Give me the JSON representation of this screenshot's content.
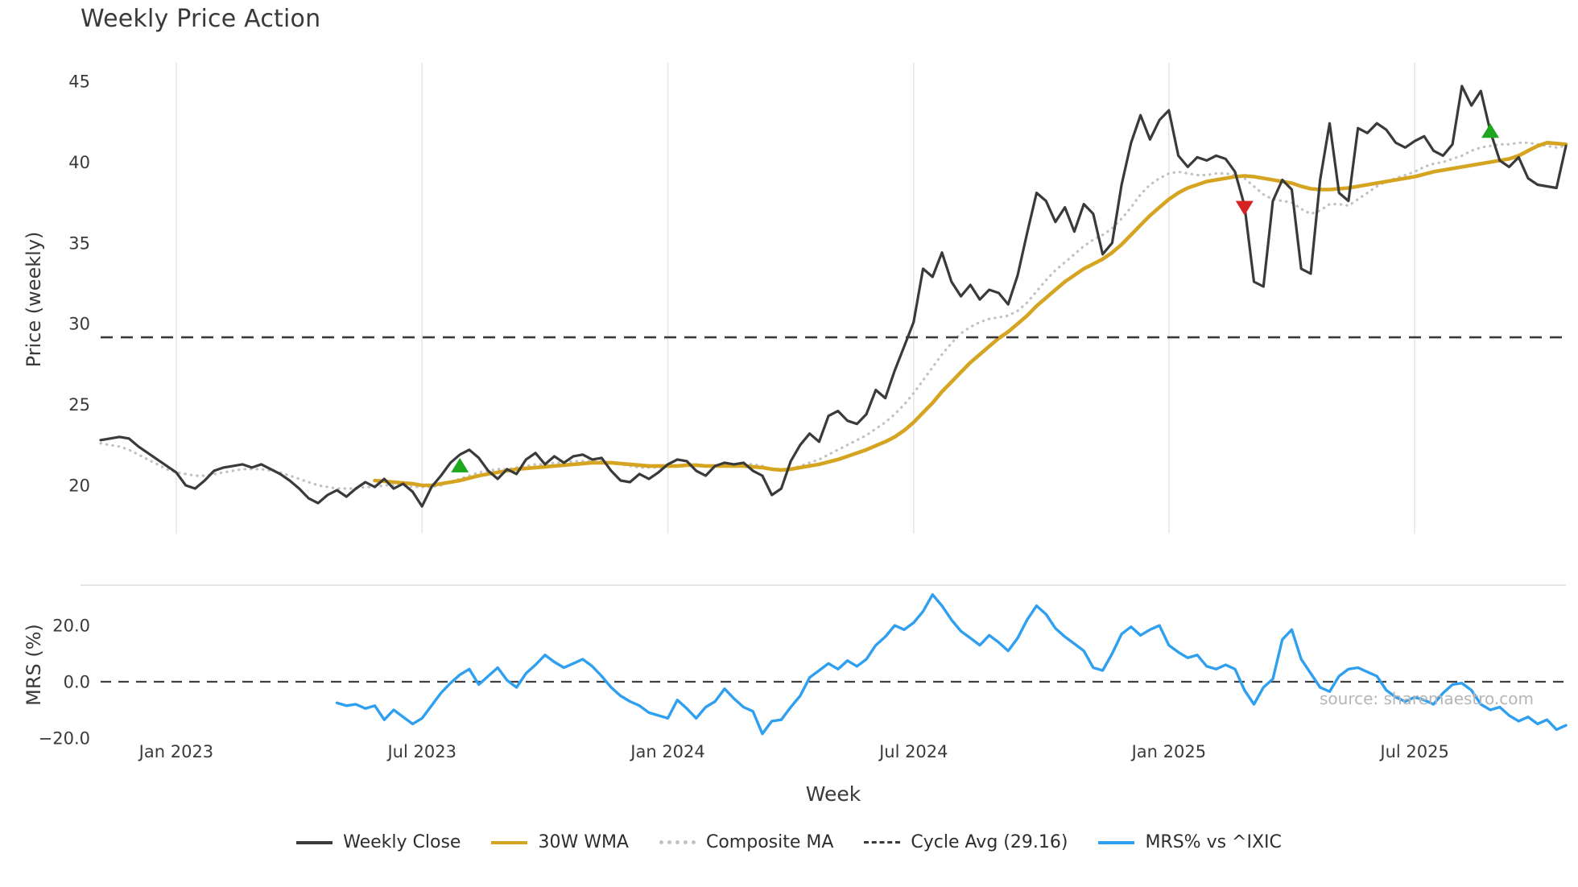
{
  "title": "Weekly Price Action",
  "source_note": "source: sharemaestro.com",
  "colors": {
    "weekly_close": "#3a3a3a",
    "wma": "#d5a521",
    "composite": "#c2c2c2",
    "cycle_avg": "#3a3a3a",
    "mrs": "#2f9ff0",
    "buy_marker": "#1fa81f",
    "sell_marker": "#d62222",
    "grid": "#e7e7e7",
    "panel_border": "#d8d8d8",
    "tick_text": "#3a3a3a"
  },
  "legend": [
    {
      "label": "Weekly Close",
      "swatch": "solid",
      "color": "#3a3a3a"
    },
    {
      "label": "30W WMA",
      "swatch": "solid",
      "color": "#d5a521"
    },
    {
      "label": "Composite MA",
      "swatch": "dotted",
      "color": "#c2c2c2"
    },
    {
      "label": "Cycle Avg (29.16)",
      "swatch": "dashed",
      "color": "#3a3a3a"
    },
    {
      "label": "MRS% vs ^IXIC",
      "swatch": "solid",
      "color": "#2f9ff0"
    }
  ],
  "chart_data": {
    "type": "line",
    "title": "Weekly Price Action",
    "xlabel": "Week",
    "weeks_total": 156,
    "xticks": {
      "weeks": [
        8,
        34,
        60,
        86,
        113,
        139
      ],
      "labels": [
        "Jan 2023",
        "Jul 2023",
        "Jan 2024",
        "Jul 2024",
        "Jan 2025",
        "Jul 2025"
      ]
    },
    "panels": [
      {
        "name": "price",
        "ylabel": "Price (weekly)",
        "ylim": [
          17.5,
          46.2
        ],
        "yticks": [
          45,
          40,
          35,
          30,
          25,
          20
        ],
        "yticklabels": [
          "45",
          "40",
          "35",
          "30",
          "25",
          "20"
        ],
        "cycle_avg": 29.16,
        "grid": "vertical",
        "series": [
          {
            "name": "Weekly Close",
            "style": "solid",
            "color": "#3a3a3a",
            "start_week": 0,
            "values": [
              22.8,
              22.9,
              23.0,
              22.9,
              22.4,
              22.0,
              21.6,
              21.2,
              20.8,
              20.0,
              19.8,
              20.3,
              20.9,
              21.1,
              21.2,
              21.3,
              21.1,
              21.3,
              21.0,
              20.7,
              20.3,
              19.8,
              19.2,
              18.9,
              19.4,
              19.7,
              19.3,
              19.8,
              20.2,
              19.9,
              20.4,
              19.8,
              20.1,
              19.6,
              18.7,
              19.9,
              20.6,
              21.4,
              21.9,
              22.2,
              21.7,
              20.9,
              20.4,
              21.0,
              20.7,
              21.6,
              22.0,
              21.3,
              21.8,
              21.4,
              21.8,
              21.9,
              21.6,
              21.7,
              20.9,
              20.3,
              20.2,
              20.7,
              20.4,
              20.8,
              21.3,
              21.6,
              21.5,
              20.9,
              20.6,
              21.2,
              21.4,
              21.3,
              21.4,
              20.9,
              20.6,
              19.4,
              19.8,
              21.5,
              22.5,
              23.2,
              22.7,
              24.3,
              24.6,
              24.0,
              23.8,
              24.4,
              25.9,
              25.4,
              27.1,
              28.6,
              30.1,
              33.4,
              32.9,
              34.4,
              32.6,
              31.7,
              32.4,
              31.5,
              32.1,
              31.9,
              31.2,
              33.0,
              35.6,
              38.1,
              37.6,
              36.3,
              37.2,
              35.7,
              37.4,
              36.8,
              34.3,
              35.0,
              38.6,
              41.2,
              42.9,
              41.4,
              42.6,
              43.2,
              40.4,
              39.7,
              40.3,
              40.1,
              40.4,
              40.2,
              39.4,
              37.3,
              32.6,
              32.3,
              37.6,
              38.9,
              38.3,
              33.4,
              33.1,
              38.9,
              42.4,
              38.1,
              37.6,
              42.1,
              41.8,
              42.4,
              42.0,
              41.2,
              40.9,
              41.3,
              41.6,
              40.7,
              40.4,
              41.1,
              44.7,
              43.5,
              44.4,
              41.9,
              40.1,
              39.7,
              40.3,
              39.0,
              38.6,
              38.5,
              38.4,
              41.0
            ]
          },
          {
            "name": "30W WMA",
            "style": "solid",
            "color": "#d5a521",
            "start_week": 29,
            "values": [
              20.3,
              20.25,
              20.2,
              20.15,
              20.1,
              20.0,
              20.0,
              20.1,
              20.2,
              20.3,
              20.45,
              20.6,
              20.7,
              20.8,
              20.9,
              21.0,
              21.05,
              21.1,
              21.15,
              21.2,
              21.25,
              21.3,
              21.35,
              21.4,
              21.4,
              21.4,
              21.35,
              21.3,
              21.25,
              21.2,
              21.2,
              21.2,
              21.2,
              21.25,
              21.25,
              21.2,
              21.2,
              21.2,
              21.2,
              21.2,
              21.15,
              21.1,
              21.0,
              20.95,
              21.0,
              21.1,
              21.2,
              21.3,
              21.45,
              21.6,
              21.8,
              22.0,
              22.2,
              22.45,
              22.7,
              23.0,
              23.4,
              23.9,
              24.5,
              25.1,
              25.8,
              26.4,
              27.0,
              27.6,
              28.1,
              28.6,
              29.1,
              29.5,
              30.0,
              30.5,
              31.1,
              31.6,
              32.1,
              32.6,
              33.0,
              33.4,
              33.7,
              34.0,
              34.4,
              34.9,
              35.5,
              36.1,
              36.7,
              37.2,
              37.7,
              38.1,
              38.4,
              38.6,
              38.8,
              38.9,
              39.0,
              39.1,
              39.15,
              39.1,
              39.0,
              38.9,
              38.8,
              38.7,
              38.5,
              38.35,
              38.3,
              38.3,
              38.35,
              38.4,
              38.5,
              38.6,
              38.7,
              38.8,
              38.9,
              39.0,
              39.1,
              39.25,
              39.4,
              39.5,
              39.6,
              39.7,
              39.8,
              39.9,
              40.0,
              40.1,
              40.2,
              40.4,
              40.7,
              41.0,
              41.2,
              41.15,
              41.1
            ]
          },
          {
            "name": "Composite MA",
            "style": "dotted",
            "color": "#c2c2c2",
            "start_week": 0,
            "values": [
              22.6,
              22.5,
              22.4,
              22.2,
              21.9,
              21.6,
              21.3,
              21.0,
              20.8,
              20.7,
              20.6,
              20.6,
              20.7,
              20.8,
              20.9,
              21.0,
              21.0,
              21.0,
              20.9,
              20.8,
              20.6,
              20.4,
              20.2,
              20.0,
              19.9,
              19.8,
              19.8,
              19.8,
              19.9,
              19.9,
              20.0,
              20.0,
              20.0,
              19.9,
              19.9,
              19.9,
              20.0,
              20.2,
              20.4,
              20.6,
              20.8,
              20.9,
              21.0,
              21.0,
              21.1,
              21.2,
              21.3,
              21.3,
              21.4,
              21.4,
              21.5,
              21.5,
              21.5,
              21.5,
              21.4,
              21.3,
              21.2,
              21.1,
              21.1,
              21.1,
              21.2,
              21.2,
              21.3,
              21.3,
              21.2,
              21.2,
              21.3,
              21.3,
              21.3,
              21.3,
              21.2,
              21.0,
              20.9,
              21.0,
              21.2,
              21.4,
              21.6,
              21.9,
              22.2,
              22.5,
              22.8,
              23.1,
              23.5,
              23.9,
              24.4,
              25.0,
              25.7,
              26.5,
              27.3,
              28.1,
              28.8,
              29.4,
              29.8,
              30.1,
              30.3,
              30.4,
              30.5,
              30.8,
              31.3,
              32.0,
              32.7,
              33.3,
              33.8,
              34.3,
              34.8,
              35.2,
              35.5,
              35.9,
              36.5,
              37.2,
              38.0,
              38.6,
              39.0,
              39.3,
              39.4,
              39.3,
              39.2,
              39.2,
              39.3,
              39.3,
              39.2,
              39.0,
              38.5,
              38.0,
              37.7,
              37.6,
              37.5,
              37.1,
              36.8,
              37.0,
              37.4,
              37.4,
              37.3,
              37.7,
              38.1,
              38.5,
              38.8,
              39.0,
              39.2,
              39.4,
              39.7,
              39.9,
              40.0,
              40.2,
              40.4,
              40.7,
              40.9,
              41.0,
              41.1,
              41.1,
              41.2,
              41.2,
              41.1,
              41.0,
              40.9,
              41.0
            ]
          },
          {
            "name": "Cycle Avg (29.16)",
            "style": "dashed",
            "color": "#3a3a3a",
            "value": 29.16
          }
        ],
        "markers": {
          "buy": [
            {
              "week": 38,
              "price": 21.2
            },
            {
              "week": 147,
              "price": 41.9
            }
          ],
          "sell": [
            {
              "week": 121,
              "price": 37.2
            }
          ]
        }
      },
      {
        "name": "mrs",
        "ylabel": "MRS (%)",
        "ylim": [
          -24,
          33
        ],
        "yticks": [
          20,
          0,
          -20
        ],
        "yticklabels": [
          "20.0",
          "0.0",
          "−20.0"
        ],
        "zero_line": 0,
        "series": [
          {
            "name": "MRS% vs ^IXIC",
            "style": "solid",
            "color": "#2f9ff0",
            "start_week": 25,
            "values": [
              -7.5,
              -8.5,
              -8,
              -9.5,
              -8.5,
              -13.5,
              -10,
              -12.5,
              -15,
              -13,
              -8.5,
              -4,
              -0.5,
              2.5,
              4.5,
              -1,
              2,
              5,
              0.5,
              -2,
              3,
              6,
              9.5,
              7,
              5,
              6.5,
              8,
              5.5,
              2,
              -2,
              -5,
              -7,
              -8.5,
              -11,
              -12,
              -13,
              -6.5,
              -9.5,
              -13,
              -9,
              -7,
              -2.5,
              -6,
              -9,
              -10.5,
              -18.5,
              -14,
              -13.5,
              -9,
              -5,
              1.5,
              4,
              6.5,
              4.5,
              7.5,
              5.5,
              8,
              13,
              16,
              20,
              18.5,
              21,
              25,
              31,
              27,
              22,
              18,
              15.5,
              13,
              16.5,
              14,
              11,
              15.5,
              22,
              27,
              24,
              19,
              16,
              13.5,
              11,
              5,
              4,
              10,
              17,
              19.5,
              16.5,
              18.5,
              20,
              13,
              10.5,
              8.5,
              9.5,
              5.5,
              4.5,
              6,
              4.5,
              -3,
              -8,
              -2,
              1,
              15,
              18.5,
              8,
              3,
              -2,
              -3.5,
              2,
              4.5,
              5,
              3.5,
              2,
              -3,
              -5.5,
              -7,
              -5.5,
              -6.5,
              -8,
              -4,
              -1,
              -0.5,
              -3,
              -8,
              -10,
              -9,
              -12,
              -14,
              -12.5,
              -15,
              -13.5,
              -17,
              -15.5
            ]
          }
        ]
      }
    ]
  }
}
